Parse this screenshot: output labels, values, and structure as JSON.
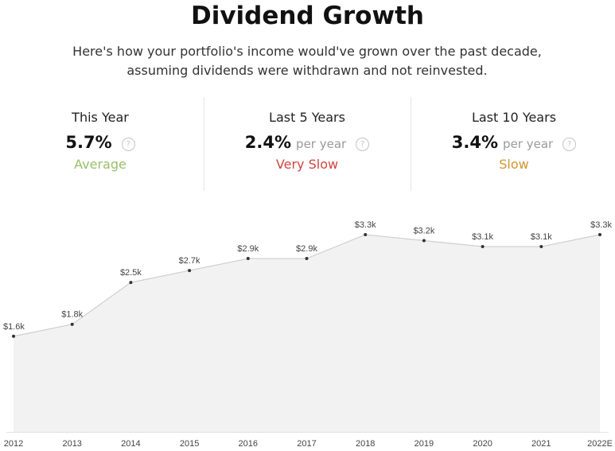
{
  "header": {
    "title": "Dividend Growth",
    "subtitle": "Here's how your portfolio's income would've grown over the past decade, assuming dividends were withdrawn and not reinvested."
  },
  "stats": [
    {
      "label": "This Year",
      "value": "5.7%",
      "unit": "",
      "rating": "Average",
      "rating_color": "#9bbf6a",
      "icon": "question-icon"
    },
    {
      "label": "Last 5 Years",
      "value": "2.4%",
      "unit": "per year",
      "rating": "Very Slow",
      "rating_color": "#d0453f",
      "icon": "question-icon"
    },
    {
      "label": "Last 10 Years",
      "value": "3.4%",
      "unit": "per year",
      "rating": "Slow",
      "rating_color": "#d4952e",
      "icon": "question-icon"
    }
  ],
  "colors": {
    "area_fill": "#f2f2f2",
    "line": "#cfcfcf",
    "point": "#333333"
  },
  "chart_data": {
    "type": "area",
    "categories": [
      "2012",
      "2013",
      "2014",
      "2015",
      "2016",
      "2017",
      "2018",
      "2019",
      "2020",
      "2021",
      "2022E"
    ],
    "values": [
      1600,
      1800,
      2500,
      2700,
      2900,
      2900,
      3300,
      3200,
      3100,
      3100,
      3300
    ],
    "data_labels": [
      "$1.6k",
      "$1.8k",
      "$2.5k",
      "$2.7k",
      "$2.9k",
      "$2.9k",
      "$3.3k",
      "$3.2k",
      "$3.1k",
      "$3.1k",
      "$3.3k"
    ],
    "ylim": [
      0,
      3300
    ],
    "grid": false
  }
}
